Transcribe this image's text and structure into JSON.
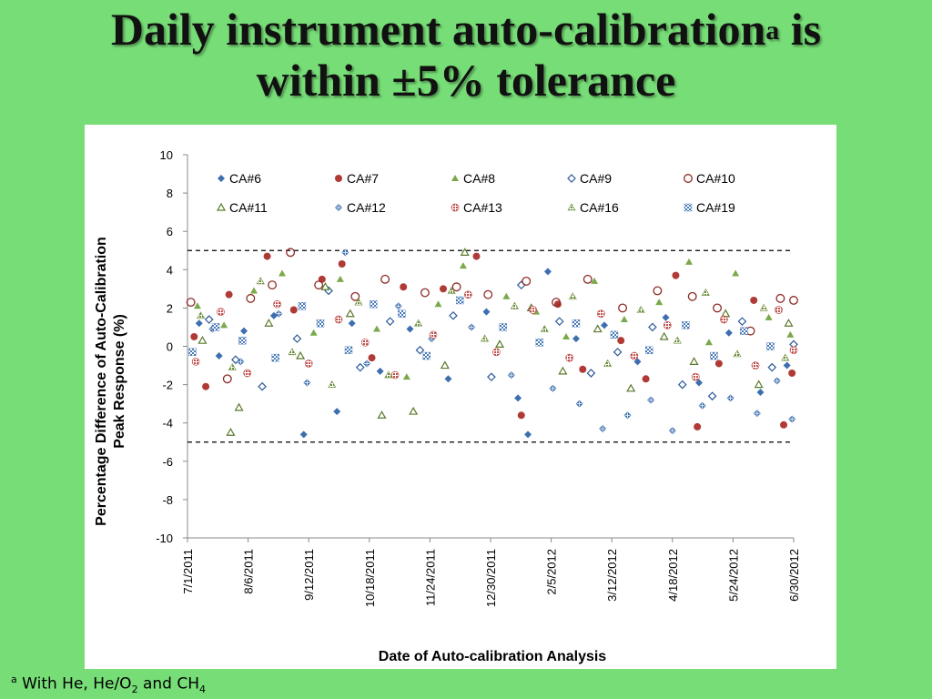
{
  "slide": {
    "title_part1": "Daily instrument auto-calibration",
    "title_sup": "a",
    "title_part2": " is",
    "title_line2": "within ±5% tolerance",
    "footnote_sup": "a",
    "footnote_text": " With He, He/O",
    "footnote_sub1": "2",
    "footnote_mid": " and CH",
    "footnote_sub2": "4"
  },
  "colors": {
    "background": "#77dd77",
    "panel": "#ffffff",
    "CA#6": "#3d6fb0",
    "CA#7": "#b03a36",
    "CA#8": "#7aa84a",
    "CA#9": "#2d5a9a",
    "CA#10": "#8e2a26",
    "CA#11": "#5a7a2a",
    "CA#12": "#3d6fb0",
    "CA#13": "#c0504d",
    "CA#16": "#6b8e3a",
    "CA#19": "#4a7ab8"
  },
  "chart_data": {
    "type": "scatter",
    "title": "",
    "xlabel": "Date of Auto-calibration Analysis",
    "ylabel": "Percentage Difference of Auto-Calibration Peak Response (%)",
    "ylabel_line1": "Percentage Difference of Auto-Calibration",
    "ylabel_line2": "Peak Response (%)",
    "ylim": [
      -10,
      10
    ],
    "yticks": [
      10,
      8,
      6,
      4,
      2,
      0,
      -2,
      -4,
      -6,
      -8,
      -10
    ],
    "xlim": [
      "2011-07-01",
      "2012-06-30"
    ],
    "xticks": [
      "7/1/2011",
      "8/6/2011",
      "9/12/2011",
      "10/18/2011",
      "11/24/2011",
      "12/30/2011",
      "2/5/2012",
      "3/12/2012",
      "4/18/2012",
      "5/24/2012",
      "6/30/2012"
    ],
    "reference_lines": [
      5,
      -5
    ],
    "grid": false,
    "legend_position": "top inside",
    "series": [
      {
        "name": "CA#6",
        "marker": "diamond-filled",
        "points": [
          [
            "2011-07-08",
            1.2
          ],
          [
            "2011-07-20",
            -0.5
          ],
          [
            "2011-08-04",
            0.8
          ],
          [
            "2011-08-22",
            1.6
          ],
          [
            "2011-09-09",
            -4.6
          ],
          [
            "2011-09-29",
            -3.4
          ],
          [
            "2011-10-08",
            1.2
          ],
          [
            "2011-10-25",
            -1.3
          ],
          [
            "2011-11-12",
            0.9
          ],
          [
            "2011-12-05",
            -1.7
          ],
          [
            "2011-12-28",
            1.8
          ],
          [
            "2012-01-16",
            -2.7
          ],
          [
            "2012-01-22",
            -4.6
          ],
          [
            "2012-02-03",
            3.9
          ],
          [
            "2012-02-20",
            0.4
          ],
          [
            "2012-03-08",
            1.1
          ],
          [
            "2012-03-28",
            -0.8
          ],
          [
            "2012-04-14",
            1.5
          ],
          [
            "2012-05-04",
            -1.9
          ],
          [
            "2012-05-22",
            0.7
          ],
          [
            "2012-06-10",
            -2.4
          ],
          [
            "2012-06-26",
            -1.0
          ]
        ]
      },
      {
        "name": "CA#7",
        "marker": "circle-filled",
        "points": [
          [
            "2011-07-05",
            0.5
          ],
          [
            "2011-07-12",
            -2.1
          ],
          [
            "2011-07-26",
            2.7
          ],
          [
            "2011-08-18",
            4.7
          ],
          [
            "2011-09-03",
            1.9
          ],
          [
            "2011-09-20",
            3.5
          ],
          [
            "2011-10-02",
            4.3
          ],
          [
            "2011-10-20",
            -0.6
          ],
          [
            "2011-11-08",
            3.1
          ],
          [
            "2011-12-02",
            3.0
          ],
          [
            "2011-12-22",
            4.7
          ],
          [
            "2012-01-18",
            -3.6
          ],
          [
            "2012-02-09",
            2.2
          ],
          [
            "2012-02-24",
            -1.2
          ],
          [
            "2012-03-18",
            0.3
          ],
          [
            "2012-04-02",
            -1.7
          ],
          [
            "2012-04-20",
            3.7
          ],
          [
            "2012-05-03",
            -4.2
          ],
          [
            "2012-05-16",
            -0.9
          ],
          [
            "2012-06-06",
            2.4
          ],
          [
            "2012-06-24",
            -4.1
          ],
          [
            "2012-06-29",
            -1.4
          ]
        ]
      },
      {
        "name": "CA#8",
        "marker": "triangle-filled",
        "points": [
          [
            "2011-07-07",
            2.1
          ],
          [
            "2011-07-23",
            1.1
          ],
          [
            "2011-08-10",
            2.9
          ],
          [
            "2011-08-27",
            3.8
          ],
          [
            "2011-09-15",
            0.7
          ],
          [
            "2011-10-01",
            3.5
          ],
          [
            "2011-10-23",
            0.9
          ],
          [
            "2011-11-10",
            -1.6
          ],
          [
            "2011-11-29",
            2.2
          ],
          [
            "2011-12-14",
            4.2
          ],
          [
            "2012-01-09",
            2.6
          ],
          [
            "2012-01-27",
            1.8
          ],
          [
            "2012-02-14",
            0.5
          ],
          [
            "2012-03-02",
            3.4
          ],
          [
            "2012-03-20",
            1.4
          ],
          [
            "2012-04-10",
            2.3
          ],
          [
            "2012-04-28",
            4.4
          ],
          [
            "2012-05-10",
            0.2
          ],
          [
            "2012-05-26",
            3.8
          ],
          [
            "2012-06-15",
            1.5
          ],
          [
            "2012-06-28",
            0.6
          ]
        ]
      },
      {
        "name": "CA#9",
        "marker": "diamond-open",
        "points": [
          [
            "2011-07-14",
            1.4
          ],
          [
            "2011-07-30",
            -0.7
          ],
          [
            "2011-08-15",
            -2.1
          ],
          [
            "2011-09-05",
            0.4
          ],
          [
            "2011-09-24",
            2.9
          ],
          [
            "2011-10-13",
            -1.1
          ],
          [
            "2011-10-31",
            1.3
          ],
          [
            "2011-11-18",
            -0.2
          ],
          [
            "2011-12-08",
            1.6
          ],
          [
            "2011-12-31",
            -1.6
          ],
          [
            "2012-01-18",
            3.2
          ],
          [
            "2012-02-10",
            1.3
          ],
          [
            "2012-02-29",
            -1.4
          ],
          [
            "2012-03-16",
            -0.3
          ],
          [
            "2012-04-06",
            1.0
          ],
          [
            "2012-04-24",
            -2.0
          ],
          [
            "2012-05-12",
            -2.6
          ],
          [
            "2012-05-30",
            1.3
          ],
          [
            "2012-06-17",
            -1.1
          ],
          [
            "2012-06-30",
            0.1
          ]
        ]
      },
      {
        "name": "CA#10",
        "marker": "circle-open",
        "points": [
          [
            "2011-07-03",
            2.3
          ],
          [
            "2011-07-25",
            -1.7
          ],
          [
            "2011-08-08",
            2.5
          ],
          [
            "2011-08-21",
            3.2
          ],
          [
            "2011-09-01",
            4.9
          ],
          [
            "2011-09-18",
            3.2
          ],
          [
            "2011-10-10",
            2.6
          ],
          [
            "2011-10-28",
            3.5
          ],
          [
            "2011-11-21",
            2.8
          ],
          [
            "2011-12-10",
            3.1
          ],
          [
            "2011-12-29",
            2.7
          ],
          [
            "2012-01-21",
            3.4
          ],
          [
            "2012-02-08",
            2.3
          ],
          [
            "2012-02-27",
            3.5
          ],
          [
            "2012-03-19",
            2.0
          ],
          [
            "2012-04-09",
            2.9
          ],
          [
            "2012-04-30",
            2.6
          ],
          [
            "2012-05-15",
            2.0
          ],
          [
            "2012-06-04",
            0.8
          ],
          [
            "2012-06-22",
            2.5
          ],
          [
            "2012-06-30",
            2.4
          ]
        ]
      },
      {
        "name": "CA#11",
        "marker": "triangle-open",
        "points": [
          [
            "2011-07-10",
            0.3
          ],
          [
            "2011-07-27",
            -4.5
          ],
          [
            "2011-08-01",
            -3.2
          ],
          [
            "2011-08-19",
            1.2
          ],
          [
            "2011-09-07",
            -0.5
          ],
          [
            "2011-09-22",
            3.1
          ],
          [
            "2011-10-07",
            1.7
          ],
          [
            "2011-10-26",
            -3.6
          ],
          [
            "2011-11-14",
            -3.4
          ],
          [
            "2011-12-03",
            -1.0
          ],
          [
            "2011-12-15",
            4.9
          ],
          [
            "2012-01-05",
            0.1
          ],
          [
            "2012-01-24",
            2.0
          ],
          [
            "2012-02-12",
            -1.3
          ],
          [
            "2012-03-04",
            0.9
          ],
          [
            "2012-03-24",
            -2.2
          ],
          [
            "2012-04-13",
            0.5
          ],
          [
            "2012-05-01",
            -0.8
          ],
          [
            "2012-05-20",
            1.7
          ],
          [
            "2012-06-09",
            -2.0
          ],
          [
            "2012-06-27",
            1.2
          ]
        ]
      },
      {
        "name": "CA#12",
        "marker": "plus-diamond",
        "points": [
          [
            "2011-07-16",
            0.9
          ],
          [
            "2011-08-02",
            -0.8
          ],
          [
            "2011-08-25",
            1.7
          ],
          [
            "2011-09-11",
            -1.9
          ],
          [
            "2011-10-04",
            4.9
          ],
          [
            "2011-10-17",
            -0.9
          ],
          [
            "2011-11-05",
            2.1
          ],
          [
            "2011-11-25",
            0.4
          ],
          [
            "2011-12-19",
            1.0
          ],
          [
            "2012-01-12",
            -1.5
          ],
          [
            "2012-02-06",
            -2.2
          ],
          [
            "2012-02-22",
            -3.0
          ],
          [
            "2012-03-07",
            -4.3
          ],
          [
            "2012-03-22",
            -3.6
          ],
          [
            "2012-04-05",
            -2.8
          ],
          [
            "2012-04-18",
            -4.4
          ],
          [
            "2012-05-06",
            -3.1
          ],
          [
            "2012-05-23",
            -2.7
          ],
          [
            "2012-06-08",
            -3.5
          ],
          [
            "2012-06-20",
            -1.8
          ],
          [
            "2012-06-29",
            -3.8
          ]
        ]
      },
      {
        "name": "CA#13",
        "marker": "circle-hatched",
        "points": [
          [
            "2011-07-06",
            -0.8
          ],
          [
            "2011-07-21",
            1.8
          ],
          [
            "2011-08-06",
            -1.4
          ],
          [
            "2011-08-24",
            2.2
          ],
          [
            "2011-09-12",
            -0.9
          ],
          [
            "2011-09-30",
            1.4
          ],
          [
            "2011-10-16",
            0.2
          ],
          [
            "2011-11-03",
            -1.5
          ],
          [
            "2011-11-26",
            0.6
          ],
          [
            "2011-12-17",
            2.7
          ],
          [
            "2012-01-03",
            -0.3
          ],
          [
            "2012-01-25",
            1.9
          ],
          [
            "2012-02-16",
            -0.6
          ],
          [
            "2012-03-06",
            1.7
          ],
          [
            "2012-03-26",
            -0.5
          ],
          [
            "2012-04-15",
            1.1
          ],
          [
            "2012-05-02",
            -1.6
          ],
          [
            "2012-05-19",
            1.4
          ],
          [
            "2012-06-07",
            -1.0
          ],
          [
            "2012-06-21",
            1.9
          ],
          [
            "2012-06-30",
            -0.2
          ]
        ]
      },
      {
        "name": "CA#16",
        "marker": "triangle-hatched",
        "points": [
          [
            "2011-07-09",
            1.6
          ],
          [
            "2011-07-28",
            -1.1
          ],
          [
            "2011-08-14",
            3.4
          ],
          [
            "2011-09-02",
            -0.3
          ],
          [
            "2011-09-26",
            -2.0
          ],
          [
            "2011-10-12",
            2.3
          ],
          [
            "2011-10-30",
            -1.5
          ],
          [
            "2011-11-17",
            1.2
          ],
          [
            "2011-12-07",
            2.9
          ],
          [
            "2011-12-27",
            0.4
          ],
          [
            "2012-01-14",
            2.1
          ],
          [
            "2012-02-01",
            0.9
          ],
          [
            "2012-02-18",
            2.6
          ],
          [
            "2012-03-10",
            -0.9
          ],
          [
            "2012-03-30",
            1.9
          ],
          [
            "2012-04-21",
            0.3
          ],
          [
            "2012-05-08",
            2.8
          ],
          [
            "2012-05-27",
            -0.4
          ],
          [
            "2012-06-12",
            2.0
          ],
          [
            "2012-06-25",
            -0.6
          ]
        ]
      },
      {
        "name": "CA#19",
        "marker": "square-checker",
        "points": [
          [
            "2011-07-04",
            -0.3
          ],
          [
            "2011-07-18",
            1.0
          ],
          [
            "2011-08-03",
            0.3
          ],
          [
            "2011-08-23",
            -0.6
          ],
          [
            "2011-09-08",
            2.1
          ],
          [
            "2011-09-19",
            1.2
          ],
          [
            "2011-10-06",
            -0.2
          ],
          [
            "2011-10-21",
            2.2
          ],
          [
            "2011-11-07",
            1.7
          ],
          [
            "2011-11-22",
            -0.5
          ],
          [
            "2011-12-12",
            2.4
          ],
          [
            "2012-01-07",
            1.0
          ],
          [
            "2012-01-29",
            0.2
          ],
          [
            "2012-02-20",
            1.2
          ],
          [
            "2012-03-14",
            0.6
          ],
          [
            "2012-04-04",
            -0.2
          ],
          [
            "2012-04-26",
            1.1
          ],
          [
            "2012-05-13",
            -0.5
          ],
          [
            "2012-05-31",
            0.8
          ],
          [
            "2012-06-16",
            0.0
          ]
        ]
      }
    ]
  }
}
